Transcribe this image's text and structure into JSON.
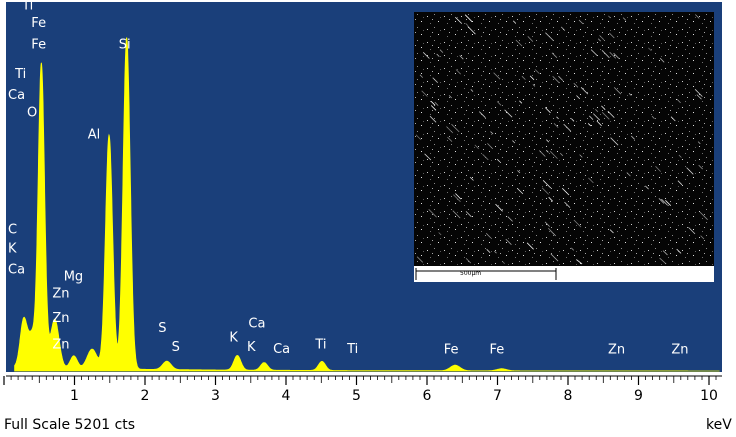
{
  "chart_data": {
    "type": "area",
    "title": "",
    "xlabel": "keV",
    "ylabel": "",
    "footer": "Full Scale 5201 cts",
    "unit_label": "keV",
    "xlim": [
      0,
      10.2
    ],
    "ylim": [
      0,
      5201
    ],
    "x_ticks": [
      1,
      2,
      3,
      4,
      5,
      6,
      7,
      8,
      9,
      10
    ],
    "colors": {
      "background": "#1a3f7a",
      "spectrum": "#ffff00",
      "labels": "#ffffff"
    },
    "inset": {
      "scale_bar_label": "500µm"
    },
    "series": [
      {
        "peaks": [
          {
            "x": 0.28,
            "y": 690,
            "w": 0.05
          },
          {
            "x": 0.4,
            "y": 450,
            "w": 0.05
          },
          {
            "x": 0.53,
            "y": 4350,
            "w": 0.045
          },
          {
            "x": 0.72,
            "y": 700,
            "w": 0.06
          },
          {
            "x": 0.99,
            "y": 180,
            "w": 0.05
          },
          {
            "x": 1.25,
            "y": 280,
            "w": 0.07
          },
          {
            "x": 1.49,
            "y": 3350,
            "w": 0.05
          },
          {
            "x": 1.74,
            "y": 4750,
            "w": 0.05
          },
          {
            "x": 2.31,
            "y": 120,
            "w": 0.06
          },
          {
            "x": 3.31,
            "y": 210,
            "w": 0.05
          },
          {
            "x": 3.69,
            "y": 110,
            "w": 0.05
          },
          {
            "x": 4.51,
            "y": 130,
            "w": 0.05
          },
          {
            "x": 6.4,
            "y": 80,
            "w": 0.07
          },
          {
            "x": 7.06,
            "y": 30,
            "w": 0.07
          }
        ],
        "background": 55
      }
    ],
    "peak_labels": [
      {
        "text": "Ti",
        "x": 0.2,
        "y": 5180
      },
      {
        "text": "Fe",
        "x": 0.33,
        "y": 4930
      },
      {
        "text": "Fe",
        "x": 0.33,
        "y": 4620
      },
      {
        "text": "Ti",
        "x": 0.1,
        "y": 4200
      },
      {
        "text": "Ca",
        "x": 0.0,
        "y": 3900
      },
      {
        "text": "O",
        "x": 0.27,
        "y": 3650
      },
      {
        "text": "Si",
        "x": 1.57,
        "y": 4620
      },
      {
        "text": "Al",
        "x": 1.13,
        "y": 3330
      },
      {
        "text": "C",
        "x": 0.0,
        "y": 1970
      },
      {
        "text": "K",
        "x": 0.0,
        "y": 1700
      },
      {
        "text": "Ca",
        "x": 0.0,
        "y": 1400
      },
      {
        "text": "Mg",
        "x": 0.79,
        "y": 1300
      },
      {
        "text": "Zn",
        "x": 0.63,
        "y": 1050
      },
      {
        "text": "Zn",
        "x": 0.63,
        "y": 700
      },
      {
        "text": "Zn",
        "x": 0.63,
        "y": 320
      },
      {
        "text": "S",
        "x": 2.13,
        "y": 560
      },
      {
        "text": "S",
        "x": 2.32,
        "y": 290
      },
      {
        "text": "K",
        "x": 3.14,
        "y": 420
      },
      {
        "text": "Ca",
        "x": 3.41,
        "y": 620
      },
      {
        "text": "K",
        "x": 3.39,
        "y": 290
      },
      {
        "text": "Ca",
        "x": 3.76,
        "y": 260
      },
      {
        "text": "Ti",
        "x": 4.36,
        "y": 320
      },
      {
        "text": "Ti",
        "x": 4.81,
        "y": 260
      },
      {
        "text": "Fe",
        "x": 6.18,
        "y": 250
      },
      {
        "text": "Fe",
        "x": 6.83,
        "y": 250
      },
      {
        "text": "Zn",
        "x": 8.51,
        "y": 250
      },
      {
        "text": "Zn",
        "x": 9.41,
        "y": 250
      }
    ]
  }
}
